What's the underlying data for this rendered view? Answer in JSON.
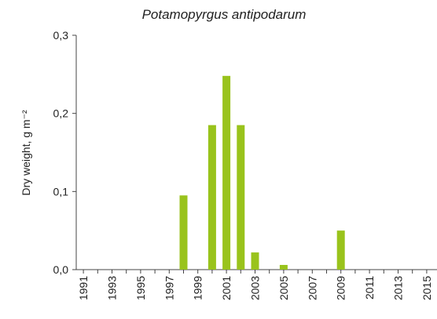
{
  "chart_data": {
    "type": "bar",
    "title": "Potamopyrgus antipodarum",
    "y_label": "Dry weight, g m⁻²",
    "categories": [
      "1991",
      null,
      "1993",
      null,
      "1995",
      null,
      "1997",
      null,
      "1999",
      null,
      "2001",
      null,
      "2003",
      null,
      "2005",
      null,
      "2007",
      null,
      "2009",
      null,
      "2011",
      null,
      "2013",
      null,
      "2015"
    ],
    "values": [
      0,
      0,
      0,
      0,
      0,
      0,
      0,
      0.095,
      0,
      0.185,
      0.248,
      0.185,
      0.022,
      0,
      0.006,
      0,
      0,
      0,
      0.05,
      0,
      0,
      0,
      0,
      0,
      0
    ],
    "color": "#99c31c",
    "ylim": [
      0,
      0.3
    ],
    "yticks": [
      {
        "value": 0,
        "label": "0,0"
      },
      {
        "value": 0.1,
        "label": "0,1"
      },
      {
        "value": 0.2,
        "label": "0,2"
      },
      {
        "value": 0.3,
        "label": "0,3"
      }
    ],
    "grid": false
  }
}
